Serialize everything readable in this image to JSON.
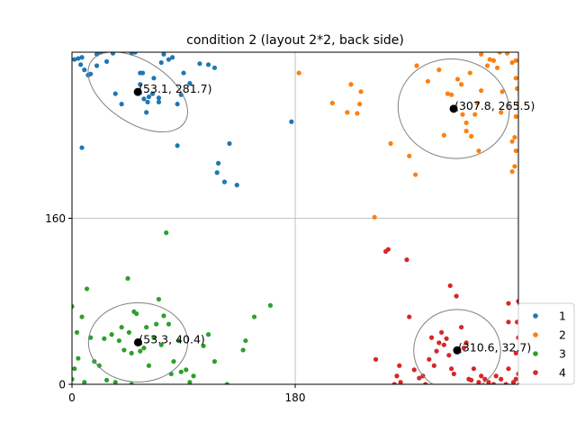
{
  "chart_data": {
    "type": "scatter",
    "title": "condition 2 (layout 2*2, back side)",
    "xlabel": "",
    "ylabel": "",
    "xlim": [
      0,
      360
    ],
    "ylim": [
      0,
      320
    ],
    "xticks": [
      0,
      180
    ],
    "yticks": [
      0,
      160
    ],
    "grid": true,
    "legend_position": "right-bottom",
    "series": [
      {
        "name": "1",
        "color": "#1f77b4",
        "points": [
          [
            2,
            313
          ],
          [
            5,
            314
          ],
          [
            8,
            315
          ],
          [
            7,
            308
          ],
          [
            10,
            303
          ],
          [
            13,
            298
          ],
          [
            15,
            299
          ],
          [
            20,
            318
          ],
          [
            20,
            307
          ],
          [
            23,
            320
          ],
          [
            28,
            311
          ],
          [
            35,
            280
          ],
          [
            40,
            270
          ],
          [
            33,
            319
          ],
          [
            48,
            319
          ],
          [
            51,
            320
          ],
          [
            55,
            300
          ],
          [
            57,
            300
          ],
          [
            55,
            289
          ],
          [
            58,
            275
          ],
          [
            61,
            272
          ],
          [
            60,
            262
          ],
          [
            62,
            277
          ],
          [
            65,
            280
          ],
          [
            66,
            295
          ],
          [
            70,
            276
          ],
          [
            70,
            272
          ],
          [
            72,
            310
          ],
          [
            74,
            318
          ],
          [
            78,
            313
          ],
          [
            81,
            315
          ],
          [
            85,
            270
          ],
          [
            88,
            279
          ],
          [
            90,
            300
          ],
          [
            95,
            290
          ],
          [
            103,
            309
          ],
          [
            110,
            308
          ],
          [
            115,
            305
          ],
          [
            117,
            204
          ],
          [
            118,
            213
          ],
          [
            123,
            195
          ],
          [
            127,
            232
          ],
          [
            133,
            192
          ],
          [
            177,
            253
          ],
          [
            8,
            228
          ],
          [
            85,
            230
          ]
        ],
        "mean": [
          53.1,
          281.7
        ],
        "mean_label": "(53.1, 281.7)",
        "ellipse": {
          "rx": 45,
          "ry": 25,
          "angle_deg": -33
        }
      },
      {
        "name": "2",
        "color": "#ff7f0e",
        "points": [
          [
            183,
            300
          ],
          [
            210,
            271
          ],
          [
            222,
            262
          ],
          [
            232,
            270
          ],
          [
            233,
            282
          ],
          [
            225,
            289
          ],
          [
            230,
            261
          ],
          [
            244,
            161
          ],
          [
            257,
            232
          ],
          [
            272,
            220
          ],
          [
            277,
            202
          ],
          [
            278,
            307
          ],
          [
            287,
            292
          ],
          [
            296,
            303
          ],
          [
            303,
            280
          ],
          [
            306,
            279
          ],
          [
            311,
            294
          ],
          [
            314,
            289
          ],
          [
            315,
            260
          ],
          [
            321,
            300
          ],
          [
            325,
            260
          ],
          [
            318,
            252
          ],
          [
            322,
            239
          ],
          [
            327,
            271
          ],
          [
            330,
            283
          ],
          [
            335,
            307
          ],
          [
            337,
            313
          ],
          [
            340,
            312
          ],
          [
            343,
            305
          ],
          [
            347,
            282
          ],
          [
            351,
            319
          ],
          [
            355,
            310
          ],
          [
            358,
            312
          ],
          [
            358,
            295
          ],
          [
            359,
            285
          ],
          [
            360,
            270
          ],
          [
            358,
            258
          ],
          [
            357,
            238
          ],
          [
            355,
            234
          ],
          [
            358,
            225
          ],
          [
            357,
            210
          ],
          [
            355,
            205
          ],
          [
            346,
            262
          ],
          [
            328,
            225
          ],
          [
            318,
            244
          ],
          [
            345,
            320
          ],
          [
            330,
            318
          ],
          [
            300,
            240
          ]
        ],
        "mean": [
          307.8,
          265.5
        ],
        "mean_label": "(307.8, 265.5)",
        "ellipse": {
          "rx": 45,
          "ry": 40,
          "angle_deg": -10
        }
      },
      {
        "name": "3",
        "color": "#2ca02c",
        "points": [
          [
            0,
            75
          ],
          [
            0,
            5
          ],
          [
            2,
            15
          ],
          [
            4,
            50
          ],
          [
            5,
            25
          ],
          [
            8,
            65
          ],
          [
            10,
            2
          ],
          [
            12,
            92
          ],
          [
            15,
            45
          ],
          [
            18,
            22
          ],
          [
            22,
            18
          ],
          [
            26,
            44
          ],
          [
            28,
            4
          ],
          [
            32,
            48
          ],
          [
            35,
            2
          ],
          [
            38,
            42
          ],
          [
            40,
            55
          ],
          [
            42,
            33
          ],
          [
            45,
            102
          ],
          [
            46,
            50
          ],
          [
            48,
            30
          ],
          [
            50,
            70
          ],
          [
            52,
            68
          ],
          [
            55,
            32
          ],
          [
            58,
            35
          ],
          [
            60,
            55
          ],
          [
            62,
            18
          ],
          [
            66,
            45
          ],
          [
            68,
            58
          ],
          [
            70,
            82
          ],
          [
            72,
            38
          ],
          [
            74,
            66
          ],
          [
            76,
            146
          ],
          [
            78,
            58
          ],
          [
            80,
            10
          ],
          [
            82,
            22
          ],
          [
            86,
            42
          ],
          [
            88,
            12
          ],
          [
            92,
            14
          ],
          [
            95,
            2
          ],
          [
            98,
            8
          ],
          [
            106,
            37
          ],
          [
            110,
            48
          ],
          [
            115,
            22
          ],
          [
            125,
            0
          ],
          [
            138,
            33
          ],
          [
            140,
            42
          ],
          [
            147,
            65
          ],
          [
            160,
            76
          ],
          [
            48,
            0
          ]
        ],
        "mean": [
          53.3,
          40.4
        ],
        "mean_label": "(53.3, 40.4)",
        "ellipse": {
          "rx": 40,
          "ry": 32,
          "angle_deg": 0
        }
      },
      {
        "name": "4",
        "color": "#d62728",
        "points": [
          [
            245,
            24
          ],
          [
            253,
            128
          ],
          [
            255,
            130
          ],
          [
            262,
            8
          ],
          [
            264,
            18
          ],
          [
            265,
            2
          ],
          [
            260,
            0
          ],
          [
            270,
            120
          ],
          [
            272,
            65
          ],
          [
            276,
            14
          ],
          [
            280,
            6
          ],
          [
            285,
            0
          ],
          [
            288,
            24
          ],
          [
            290,
            45
          ],
          [
            292,
            18
          ],
          [
            294,
            32
          ],
          [
            296,
            40
          ],
          [
            298,
            50
          ],
          [
            300,
            38
          ],
          [
            302,
            44
          ],
          [
            304,
            28
          ],
          [
            306,
            15
          ],
          [
            308,
            10
          ],
          [
            305,
            95
          ],
          [
            310,
            85
          ],
          [
            314,
            55
          ],
          [
            316,
            35
          ],
          [
            318,
            40
          ],
          [
            320,
            5
          ],
          [
            322,
            4
          ],
          [
            324,
            15
          ],
          [
            328,
            2
          ],
          [
            330,
            8
          ],
          [
            333,
            5
          ],
          [
            336,
            2
          ],
          [
            340,
            0
          ],
          [
            342,
            8
          ],
          [
            346,
            5
          ],
          [
            350,
            0
          ],
          [
            352,
            15
          ],
          [
            356,
            2
          ],
          [
            358,
            5
          ],
          [
            360,
            10
          ],
          [
            358,
            30
          ],
          [
            360,
            45
          ],
          [
            359,
            60
          ],
          [
            352,
            60
          ],
          [
            360,
            80
          ],
          [
            352,
            78
          ],
          [
            283,
            8
          ]
        ],
        "mean": [
          310.6,
          32.7
        ],
        "mean_label": "(310.6, 32.7)",
        "ellipse": {
          "rx": 35,
          "ry": 33,
          "angle_deg": 0
        }
      }
    ]
  }
}
